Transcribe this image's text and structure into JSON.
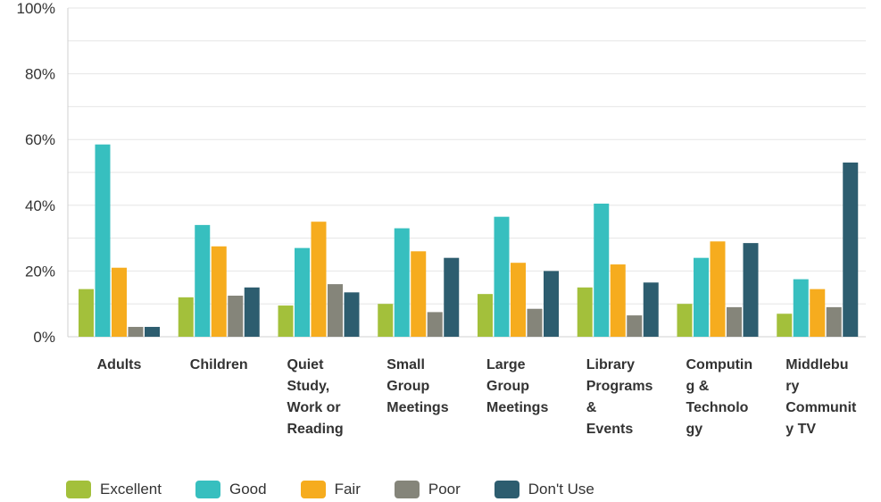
{
  "chart_data": {
    "type": "bar",
    "categories": [
      [
        "Adults"
      ],
      [
        "Children"
      ],
      [
        "Quiet",
        "Study,",
        "Work or",
        "Reading"
      ],
      [
        "Small",
        "Group",
        "Meetings"
      ],
      [
        "Large",
        "Group",
        "Meetings"
      ],
      [
        "Library",
        "Programs",
        "&",
        "Events"
      ],
      [
        "Computin",
        "g &",
        "Technolo",
        "gy"
      ],
      [
        "Middlebu",
        "ry",
        "Communit",
        "y TV"
      ]
    ],
    "series": [
      {
        "name": "Excellent",
        "color": "#a3c03b",
        "values": [
          14.5,
          12,
          9.5,
          10,
          13,
          15,
          10,
          7
        ]
      },
      {
        "name": "Good",
        "color": "#37bfbf",
        "values": [
          58.5,
          34,
          27,
          33,
          36.5,
          40.5,
          24,
          17.5
        ]
      },
      {
        "name": "Fair",
        "color": "#f6ac1e",
        "values": [
          21,
          27.5,
          35,
          26,
          22.5,
          22,
          29,
          14.5
        ]
      },
      {
        "name": "Poor",
        "color": "#85857a",
        "values": [
          3,
          12.5,
          16,
          7.5,
          8.5,
          6.5,
          9,
          9
        ]
      },
      {
        "name": "Don't Use",
        "color": "#2d5d6f",
        "values": [
          3,
          15,
          13.5,
          24,
          20,
          16.5,
          28.5,
          53
        ]
      }
    ],
    "ylim": [
      0,
      100
    ],
    "yticks": [
      "0%",
      "20%",
      "40%",
      "60%",
      "80%",
      "100%"
    ],
    "ytick_values": [
      0,
      20,
      40,
      60,
      80,
      100
    ],
    "grid": true,
    "legend_position": "bottom-left"
  }
}
